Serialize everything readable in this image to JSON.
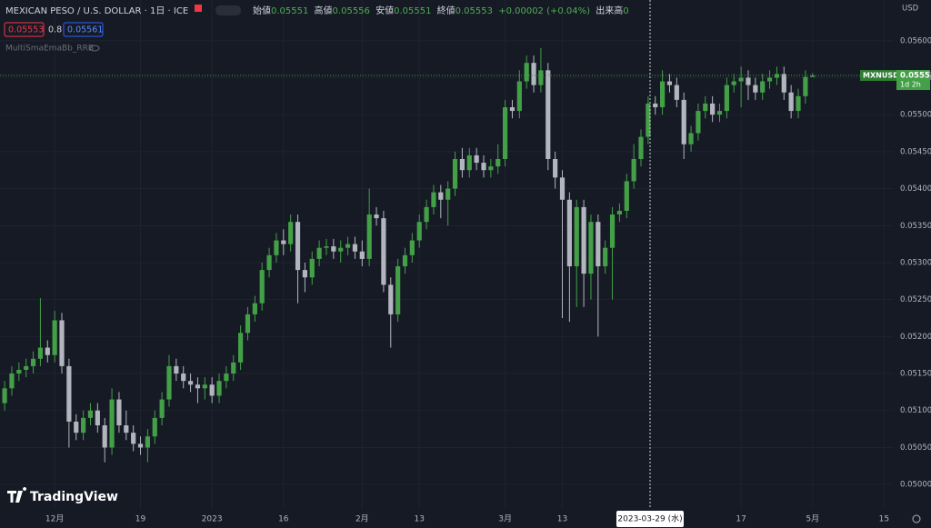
{
  "header": {
    "ohlc_labels": [
      "始値",
      "高値",
      "安値",
      "終値"
    ],
    "change": "+0.00002 (+0.04%)",
    "volume_label": "出来高",
    "volume": "0",
    "sell": "0.05553",
    "spread": "0.8",
    "buy": "0.05561",
    "indicator": "MultiSmaEmaBb_RRB"
  },
  "currency": "USD",
  "price_tag": {
    "symbol": "MXNUSD",
    "countdown": "1d 2h"
  },
  "crosshair_label": "2023-03-29 (水)",
  "logo": "TradingView",
  "chart_data": {
    "type": "candlestick",
    "title": "MEXICAN PESO / U.S. DOLLAR · 1日 · ICE",
    "up_color": "#43a047",
    "down_color": "#b2b5be",
    "grid": true,
    "categories": [
      null,
      null,
      null,
      null,
      null,
      null,
      null,
      "12月",
      null,
      null,
      null,
      null,
      null,
      null,
      null,
      null,
      null,
      null,
      null,
      "19",
      null,
      null,
      null,
      null,
      null,
      null,
      null,
      null,
      null,
      "2023",
      null,
      null,
      null,
      null,
      null,
      null,
      null,
      null,
      null,
      "16",
      null,
      null,
      null,
      null,
      null,
      null,
      null,
      null,
      null,
      null,
      "2月",
      null,
      null,
      null,
      null,
      null,
      null,
      null,
      "13",
      null,
      null,
      null,
      null,
      null,
      null,
      null,
      null,
      null,
      null,
      null,
      "3月",
      null,
      null,
      null,
      null,
      null,
      null,
      null,
      "13",
      null,
      null,
      null,
      null,
      null,
      null,
      null,
      null,
      null,
      null,
      null,
      null,
      null,
      null,
      null,
      null,
      null,
      null,
      null,
      null,
      null,
      null,
      null,
      null,
      "17",
      null,
      null,
      null,
      null,
      null,
      null,
      null,
      null,
      null,
      "5月",
      null,
      null,
      null,
      null,
      null,
      null,
      null,
      null,
      null,
      "15",
      null
    ],
    "open": [
      0.0511,
      0.0513,
      0.0515,
      0.05155,
      0.0516,
      0.0517,
      0.05185,
      0.05175,
      0.05222,
      0.0516,
      0.05085,
      0.0507,
      0.0509,
      0.051,
      0.0508,
      0.0505,
      0.05115,
      0.0508,
      0.0507,
      0.05055,
      0.0505,
      0.05065,
      0.0509,
      0.05115,
      0.0516,
      0.0515,
      0.0514,
      0.05135,
      0.0513,
      0.05135,
      0.0512,
      0.0514,
      0.0515,
      0.05165,
      0.05205,
      0.0523,
      0.05245,
      0.0529,
      0.0531,
      0.0533,
      0.05325,
      0.05355,
      0.0529,
      0.0528,
      0.05305,
      0.0532,
      0.05322,
      0.05315,
      0.0532,
      0.05325,
      0.05315,
      0.05305,
      0.05365,
      0.0536,
      0.0527,
      0.0523,
      0.05295,
      0.0531,
      0.0533,
      0.05355,
      0.05375,
      0.05395,
      0.05385,
      0.054,
      0.0544,
      0.05425,
      0.05445,
      0.05435,
      0.05425,
      0.0543,
      0.0544,
      0.0551,
      0.05505,
      0.05545,
      0.0557,
      0.0554,
      0.0556,
      0.0544,
      0.05415,
      0.05385,
      0.05295,
      0.05375,
      0.05285,
      0.05355,
      0.05295,
      0.0532,
      0.05365,
      0.0537,
      0.0541,
      0.0544,
      0.0547,
      0.05515,
      0.0551,
      0.05545,
      0.0554,
      0.0552,
      0.0546,
      0.05475,
      0.05505,
      0.05515,
      0.055,
      0.05505,
      0.0554,
      0.05545,
      0.0555,
      0.0554,
      0.0553,
      0.05545,
      0.0555,
      0.05555,
      0.0553,
      0.05505,
      0.05525,
      0.05551,
      null,
      null,
      null,
      null,
      null,
      null,
      null,
      null,
      null,
      null,
      null
    ],
    "high": [
      0.0514,
      0.0516,
      0.05165,
      0.0517,
      0.0518,
      0.05252,
      0.05195,
      0.05235,
      0.05232,
      0.0517,
      0.05095,
      0.051,
      0.0511,
      0.0511,
      0.0509,
      0.0513,
      0.05125,
      0.051,
      0.0508,
      0.05065,
      0.05075,
      0.051,
      0.05125,
      0.05175,
      0.0517,
      0.0516,
      0.0515,
      0.05145,
      0.05145,
      0.05145,
      0.0515,
      0.0516,
      0.05175,
      0.05215,
      0.0524,
      0.05255,
      0.053,
      0.0532,
      0.0534,
      0.05345,
      0.05365,
      0.05365,
      0.053,
      0.05315,
      0.0533,
      0.05332,
      0.05332,
      0.0533,
      0.05335,
      0.05335,
      0.0533,
      0.054,
      0.05375,
      0.0537,
      0.0528,
      0.05305,
      0.0532,
      0.0534,
      0.05365,
      0.05385,
      0.05405,
      0.05405,
      0.0541,
      0.0545,
      0.05455,
      0.05455,
      0.05455,
      0.05445,
      0.0544,
      0.0546,
      0.0552,
      0.0552,
      0.0556,
      0.0558,
      0.0558,
      0.0559,
      0.0557,
      0.0545,
      0.05425,
      0.05395,
      0.05385,
      0.05385,
      0.05365,
      0.05365,
      0.0533,
      0.05375,
      0.0538,
      0.0542,
      0.0546,
      0.0548,
      0.05525,
      0.05525,
      0.0556,
      0.05555,
      0.0555,
      0.0553,
      0.05485,
      0.05515,
      0.05525,
      0.05525,
      0.05515,
      0.0555,
      0.05555,
      0.05565,
      0.0556,
      0.0555,
      0.05555,
      0.0556,
      0.05565,
      0.05565,
      0.0554,
      0.05535,
      0.0556,
      0.05556,
      null,
      null,
      null,
      null,
      null,
      null,
      null,
      null,
      null,
      null,
      null
    ],
    "low": [
      0.051,
      0.0512,
      0.0514,
      0.05145,
      0.0515,
      0.0516,
      0.05165,
      0.05165,
      0.0515,
      0.0505,
      0.0506,
      0.0506,
      0.0508,
      0.0507,
      0.0503,
      0.0504,
      0.0507,
      0.0506,
      0.05045,
      0.0504,
      0.0503,
      0.05055,
      0.0508,
      0.05105,
      0.0514,
      0.0513,
      0.05125,
      0.0511,
      0.05115,
      0.0511,
      0.0511,
      0.0513,
      0.0514,
      0.05155,
      0.05195,
      0.0522,
      0.05235,
      0.0528,
      0.053,
      0.0531,
      0.05315,
      0.05245,
      0.0526,
      0.0527,
      0.05295,
      0.0531,
      0.05305,
      0.053,
      0.0531,
      0.05305,
      0.05295,
      0.05295,
      0.0535,
      0.0526,
      0.05185,
      0.0522,
      0.05285,
      0.053,
      0.0532,
      0.05345,
      0.05365,
      0.0536,
      0.0535,
      0.0539,
      0.05415,
      0.05415,
      0.05425,
      0.05415,
      0.05415,
      0.0542,
      0.0543,
      0.05495,
      0.05495,
      0.05535,
      0.0553,
      0.0553,
      0.05425,
      0.054,
      0.05225,
      0.0522,
      0.0524,
      0.0524,
      0.0525,
      0.052,
      0.05285,
      0.0525,
      0.05355,
      0.0536,
      0.054,
      0.0543,
      0.0546,
      0.055,
      0.055,
      0.0553,
      0.0551,
      0.0544,
      0.0545,
      0.05465,
      0.05495,
      0.0549,
      0.0549,
      0.05495,
      0.0553,
      0.0551,
      0.0552,
      0.0552,
      0.0552,
      0.05535,
      0.0554,
      0.0552,
      0.05495,
      0.05495,
      0.05515,
      0.05551,
      null,
      null,
      null,
      null,
      null,
      null,
      null,
      null,
      null,
      null,
      null
    ],
    "close": [
      0.0513,
      0.0515,
      0.05155,
      0.0516,
      0.0517,
      0.05185,
      0.05175,
      0.05222,
      0.0516,
      0.05085,
      0.0507,
      0.0509,
      0.051,
      0.0508,
      0.0505,
      0.05115,
      0.0508,
      0.0507,
      0.05055,
      0.0505,
      0.05065,
      0.0509,
      0.05115,
      0.0516,
      0.0515,
      0.0514,
      0.05135,
      0.0513,
      0.05135,
      0.0512,
      0.0514,
      0.0515,
      0.05165,
      0.05205,
      0.0523,
      0.05245,
      0.0529,
      0.0531,
      0.0533,
      0.05325,
      0.05355,
      0.0529,
      0.0528,
      0.05305,
      0.0532,
      0.05322,
      0.05315,
      0.0532,
      0.05325,
      0.05315,
      0.05305,
      0.05365,
      0.0536,
      0.0527,
      0.0523,
      0.05295,
      0.0531,
      0.0533,
      0.05355,
      0.05375,
      0.05395,
      0.05385,
      0.054,
      0.0544,
      0.05425,
      0.05445,
      0.05435,
      0.05425,
      0.0543,
      0.0544,
      0.0551,
      0.05505,
      0.05545,
      0.0557,
      0.0554,
      0.0556,
      0.0544,
      0.05415,
      0.05385,
      0.05295,
      0.05375,
      0.05285,
      0.05355,
      0.05295,
      0.0532,
      0.05365,
      0.0537,
      0.0541,
      0.0544,
      0.0547,
      0.05515,
      0.0551,
      0.05545,
      0.0554,
      0.0552,
      0.0546,
      0.05475,
      0.05505,
      0.05515,
      0.055,
      0.05505,
      0.0554,
      0.05545,
      0.0555,
      0.0554,
      0.0553,
      0.05545,
      0.0555,
      0.05555,
      0.0553,
      0.05505,
      0.05525,
      0.05551,
      0.05553,
      null,
      null,
      null,
      null,
      null,
      null,
      null,
      null,
      null,
      null,
      null
    ],
    "ylim": [
      0.04967,
      0.05655
    ],
    "yticks": [
      {
        "value": 0.05,
        "label": "0.05000"
      },
      {
        "value": 0.0505,
        "label": "0.05050"
      },
      {
        "value": 0.051,
        "label": "0.05100"
      },
      {
        "value": 0.0515,
        "label": "0.05150"
      },
      {
        "value": 0.052,
        "label": "0.05200"
      },
      {
        "value": 0.0525,
        "label": "0.05250"
      },
      {
        "value": 0.053,
        "label": "0.05300"
      },
      {
        "value": 0.0535,
        "label": "0.05350"
      },
      {
        "value": 0.054,
        "label": "0.05400"
      },
      {
        "value": 0.0545,
        "label": "0.05450"
      },
      {
        "value": 0.055,
        "label": "0.05500"
      },
      {
        "value": 0.0555,
        "label": "0.05550"
      },
      {
        "value": 0.056,
        "label": "0.05600"
      }
    ]
  }
}
